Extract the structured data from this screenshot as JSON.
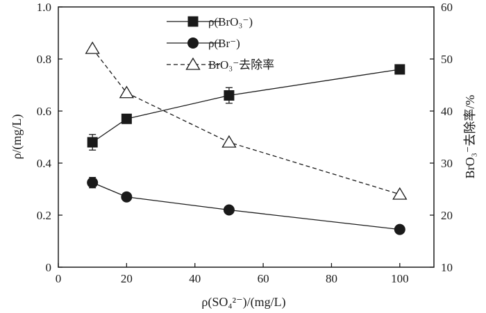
{
  "chart_data": {
    "type": "line",
    "x": [
      10,
      20,
      50,
      100
    ],
    "xlabel": "ρ(SO₄²⁻)/(mg/L)",
    "ylabel": "ρ/(mg/L)",
    "y2label": "BrO₃⁻去除率/%",
    "xlim": [
      0,
      110
    ],
    "ylim": [
      0,
      1.0
    ],
    "y2lim": [
      10,
      60
    ],
    "xticks": [
      "0",
      "20",
      "40",
      "60",
      "80",
      "100"
    ],
    "yticks": [
      "0",
      "0.2",
      "0.4",
      "0.6",
      "0.8",
      "1.0"
    ],
    "y2ticks": [
      "10",
      "20",
      "30",
      "40",
      "50",
      "60"
    ],
    "grid": false,
    "legend_position": "top-center",
    "series": [
      {
        "name": "ρ(BrO₃⁻)",
        "axis": "left",
        "marker": "filled-square",
        "line": "solid",
        "values": [
          0.48,
          0.57,
          0.66,
          0.76
        ],
        "errors": [
          0.03,
          0.01,
          0.03,
          0.0
        ]
      },
      {
        "name": "ρ(Br⁻)",
        "axis": "left",
        "marker": "filled-circle",
        "line": "solid",
        "values": [
          0.325,
          0.27,
          0.22,
          0.145
        ],
        "errors": [
          0.02,
          0.0,
          0.0,
          0.0
        ]
      },
      {
        "name": "BrO₃⁻去除率",
        "axis": "right",
        "marker": "open-triangle",
        "line": "dashed",
        "values": [
          52,
          43.5,
          34,
          24
        ]
      }
    ]
  }
}
